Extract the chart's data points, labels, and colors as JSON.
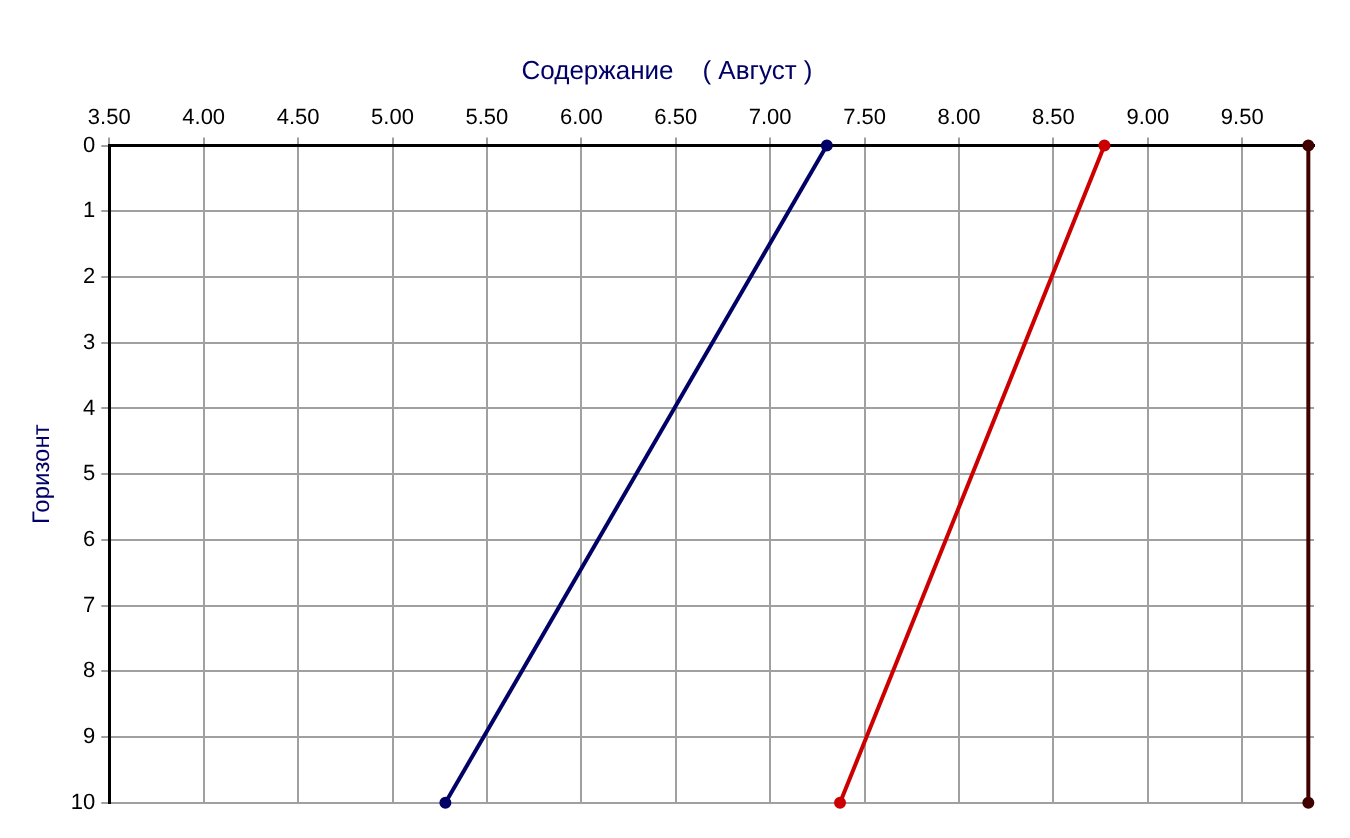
{
  "chart_data": {
    "type": "line",
    "title": "Содержание    ( Август )",
    "ylabel": "Горизонт",
    "series": [
      {
        "color": "#000066",
        "x": [
          7.3,
          5.28
        ],
        "values": [
          0,
          10
        ]
      },
      {
        "color": "#cc0000",
        "x": [
          8.77,
          7.37
        ],
        "values": [
          0,
          10
        ]
      },
      {
        "color": "#400000",
        "x": [
          9.85,
          9.85
        ],
        "values": [
          0,
          10
        ]
      }
    ],
    "xlim": [
      3.5,
      9.88
    ],
    "xticks": [
      {
        "value": 3.5,
        "label": "3.50"
      },
      {
        "value": 4,
        "label": "4.00"
      },
      {
        "value": 4.5,
        "label": "4.50"
      },
      {
        "value": 5,
        "label": "5.00"
      },
      {
        "value": 5.5,
        "label": "5.50"
      },
      {
        "value": 6,
        "label": "6.00"
      },
      {
        "value": 6.5,
        "label": "6.50"
      },
      {
        "value": 7,
        "label": "7.00"
      },
      {
        "value": 7.5,
        "label": "7.50"
      },
      {
        "value": 8,
        "label": "8.00"
      },
      {
        "value": 8.5,
        "label": "8.50"
      },
      {
        "value": 9,
        "label": "9.00"
      },
      {
        "value": 9.5,
        "label": "9.50"
      }
    ],
    "ylim": [
      10,
      0
    ],
    "yticks": [
      0,
      1,
      2,
      3,
      4,
      5,
      6,
      7,
      8,
      9,
      10
    ],
    "grid": true,
    "legend": false,
    "marker": "circle",
    "line_style": "solid"
  }
}
